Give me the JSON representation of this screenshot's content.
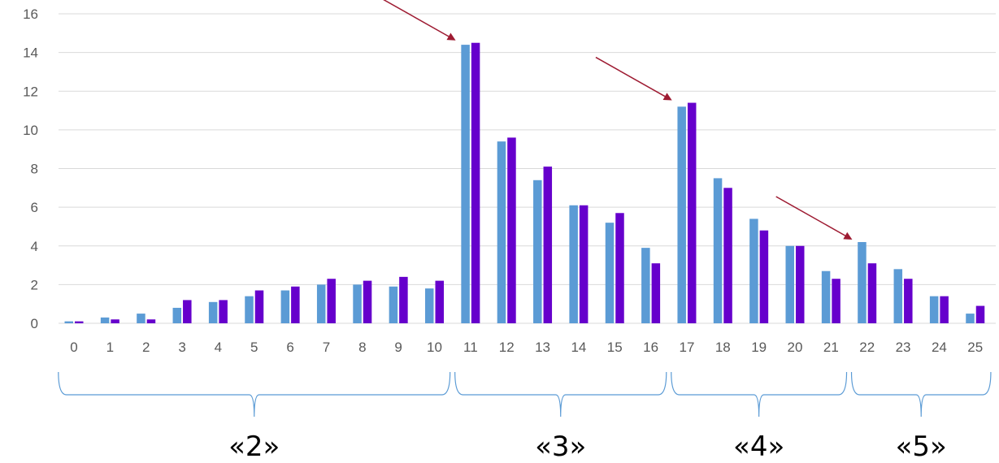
{
  "chart_data": {
    "type": "bar",
    "categories": [
      "0",
      "1",
      "2",
      "3",
      "4",
      "5",
      "6",
      "7",
      "8",
      "9",
      "10",
      "11",
      "12",
      "13",
      "14",
      "15",
      "16",
      "17",
      "18",
      "19",
      "20",
      "21",
      "22",
      "23",
      "24",
      "25"
    ],
    "series": [
      {
        "color": "#5b9bd5",
        "values": [
          0.1,
          0.3,
          0.5,
          0.8,
          1.1,
          1.4,
          1.7,
          2.0,
          2.0,
          1.9,
          1.8,
          14.4,
          9.4,
          7.4,
          6.1,
          5.2,
          3.9,
          11.2,
          7.5,
          5.4,
          4.0,
          2.7,
          4.2,
          2.8,
          1.4,
          0.5
        ]
      },
      {
        "color": "#6600cc",
        "values": [
          0.1,
          0.2,
          0.2,
          1.2,
          1.2,
          1.7,
          1.9,
          2.3,
          2.2,
          2.4,
          2.2,
          14.5,
          9.6,
          8.1,
          6.1,
          5.7,
          3.1,
          11.4,
          7.0,
          4.8,
          4.0,
          2.3,
          3.1,
          2.3,
          1.4,
          0.9
        ]
      }
    ],
    "yticks": [
      "0",
      "2",
      "4",
      "6",
      "8",
      "10",
      "12",
      "14",
      "16"
    ],
    "ylim": [
      0,
      16
    ],
    "grid": true,
    "groups": [
      {
        "label": "«2»",
        "from": 0,
        "to": 10
      },
      {
        "label": "«3»",
        "from": 11,
        "to": 16
      },
      {
        "label": "«4»",
        "from": 17,
        "to": 21
      },
      {
        "label": "«5»",
        "from": 22,
        "to": 25
      }
    ],
    "annotations": [
      {
        "type": "arrow",
        "target_category": 11
      },
      {
        "type": "arrow",
        "target_category": 17
      },
      {
        "type": "arrow",
        "target_category": 22
      }
    ],
    "colors": {
      "grid": "#d9d9d9",
      "brace": "#5b9bd5",
      "arrow": "#9e1b32",
      "tick_text": "#595959"
    }
  }
}
